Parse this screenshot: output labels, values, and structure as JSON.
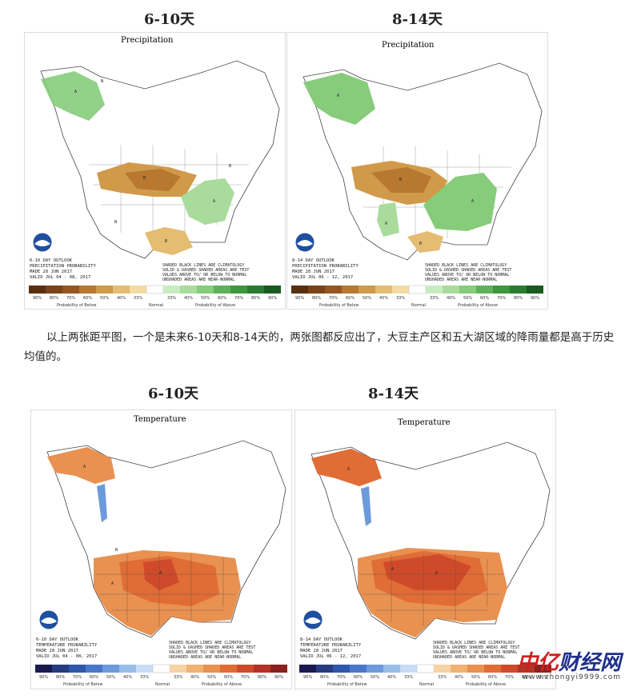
{
  "sections": {
    "precip_6_10_heading": "6-10天",
    "precip_8_14_heading": "8-14天",
    "temp_6_10_heading": "6-10天",
    "temp_8_14_heading": "8-14天"
  },
  "paragraph": "以上两张距平图，一个是未来6-10天和8-14天的，两张图都反应出了，大豆主产区和五大湖区域的降雨量都是高于历史均值的。",
  "maps": {
    "precip_6_10": {
      "title": "Precipitation",
      "outlook_lines": [
        "6-10 DAY OUTLOOK",
        "PRECIPITATION PROBABILITY",
        "MADE  28 JUN 2017",
        "VALID  JUL 04 - 08, 2017"
      ],
      "key_lines": [
        "SHADED BLACK LINES ARE CLIMATOLOGY",
        "SOLID & DASHED SHADED AREAS ARE TEST",
        "VALUES ABOVE TO/ OR BELOW TO NORMAL",
        "UNSHADED AREAS ARE NEAR-NORMAL"
      ],
      "letters": [
        "A",
        "N",
        "B",
        "A",
        "B",
        "N",
        "B"
      ]
    },
    "precip_8_14": {
      "title": "Precipitation",
      "outlook_lines": [
        "8-14 DAY OUTLOOK",
        "PRECIPITATION PROBABILITY",
        "MADE  28 JUN 2017",
        "VALID  JUL 06 - 12, 2017"
      ],
      "key_lines": [
        "SHADED BLACK LINES ARE CLIMATOLOGY",
        "SOLID & DASHED SHADED AREAS ARE TEST",
        "VALUES ABOVE TO/ OR BELOW TO NORMAL",
        "UNSHADED AREAS ARE NEAR-NORMAL"
      ],
      "letters": [
        "A",
        "B",
        "A",
        "A",
        "B"
      ]
    },
    "temp_6_10": {
      "title": "Temperature",
      "outlook_lines": [
        "6-10 DAY OUTLOOK",
        "TEMPERATURE PROBABILITY",
        "MADE  28 JUN 2017",
        "VALID  JUL 04 - 08, 2017"
      ],
      "key_lines": [
        "SHADED BLACK LINES ARE CLIMATOLOGY",
        "SOLID & DASHED SHADED AREAS ARE TEST",
        "VALUES ABOVE TO/ OR BELOW TO NORMAL",
        "UNSHADED AREAS ARE NEAR-NORMAL"
      ],
      "letters": [
        "A",
        "N",
        "A",
        "A"
      ]
    },
    "temp_8_14": {
      "title": "Temperature",
      "outlook_lines": [
        "8-14 DAY OUTLOOK",
        "TEMPERATURE PROBABILITY",
        "MADE  28 JUN 2017",
        "VALID  JUL 06 - 12, 2017"
      ],
      "key_lines": [
        "SHADED BLACK LINES ARE CLIMATOLOGY",
        "SOLID & DASHED SHADED AREAS ARE TEST",
        "VALUES ABOVE TO/ OR BELOW TO NORMAL",
        "UNSHADED AREAS ARE NEAR-NORMAL"
      ],
      "letters": [
        "A",
        "A",
        "A"
      ]
    }
  },
  "legend": {
    "below_ticks": [
      "90%",
      "80%",
      "70%",
      "60%",
      "50%",
      "40%",
      "33%"
    ],
    "above_ticks": [
      "33%",
      "40%",
      "50%",
      "60%",
      "70%",
      "80%",
      "90%"
    ],
    "below_label": "Probability of Below",
    "normal_label": "Normal",
    "above_label": "Probability of Above"
  },
  "colors": {
    "precip_below": [
      "#5a2f10",
      "#7a4418",
      "#95561f",
      "#b87830",
      "#d09a4a",
      "#e4bc72",
      "#f3dba3"
    ],
    "precip_above": [
      "#c8ecc0",
      "#a9dc9c",
      "#86cc7b",
      "#5fb25a",
      "#3d983d",
      "#2a7d30",
      "#1a5a20"
    ],
    "temp_below": [
      "#1a1a50",
      "#263a80",
      "#2f56a8",
      "#4a78c8",
      "#6d9ada",
      "#98bde8",
      "#c8dcf3"
    ],
    "temp_above": [
      "#f6d3a3",
      "#f0b272",
      "#e99150",
      "#e06c36",
      "#cf4a2a",
      "#b13426",
      "#8a2020"
    ]
  },
  "watermark": {
    "part1": "中亿",
    "part2": "财经网",
    "url": "www.zhongyi9999.com"
  }
}
